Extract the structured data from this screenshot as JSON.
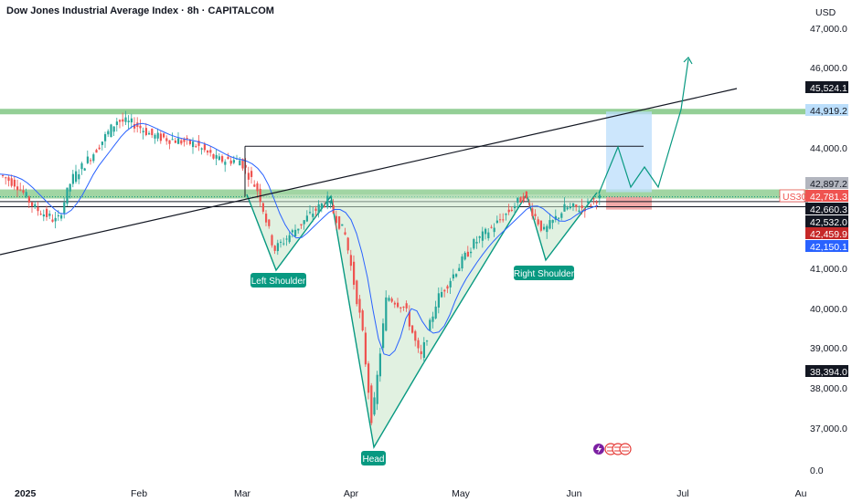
{
  "header": {
    "title": "Dow Jones Industrial Average Index · 8h · CAPITALCOM",
    "currency": "USD"
  },
  "chart_data": {
    "type": "candlestick",
    "symbol": "US30",
    "y_ticks": [
      "47,000.0",
      "46,000.0",
      "44,000.0",
      "41,000.0",
      "40,000.0",
      "39,000.0",
      "38,000.0",
      "37,000.0",
      "0.0"
    ],
    "x_ticks": [
      "2025",
      "Feb",
      "Mar",
      "Apr",
      "May",
      "Jun",
      "Jul",
      "Au"
    ],
    "price_labels": [
      {
        "text": "45,524.1",
        "value": 45524.1,
        "style": "dark"
      },
      {
        "text": "44,919.2",
        "value": 44919.2,
        "style": "blue-light"
      },
      {
        "text": "42,897.2",
        "value": 42897.2,
        "style": "grey"
      },
      {
        "text": "42,781.3",
        "value": 42781.3,
        "style": "red"
      },
      {
        "text": "42,660.3",
        "value": 42660.3,
        "style": "dark"
      },
      {
        "text": "42,532.0",
        "value": 42532.0,
        "style": "dark"
      },
      {
        "text": "42,459.9",
        "value": 42459.9,
        "style": "darkred"
      },
      {
        "text": "42,150.1",
        "value": 42150.1,
        "style": "blue"
      },
      {
        "text": "38,394.0",
        "value": 38394.0,
        "style": "dark"
      }
    ],
    "annotations": {
      "left_shoulder": "Left Shoulder",
      "right_shoulder": "Right Shoulder",
      "head": "Head"
    },
    "levels": {
      "resistance_top": 44919.2,
      "neckline_zone_top": 42897.2,
      "neckline": 42781.3,
      "support_a": 42660.3,
      "support_b": 42532.0,
      "breakout_box_top": 44919.2,
      "breakout_box_bottom": 42897.2,
      "stop_box_top": 42781.3,
      "stop_box_bottom": 42459.9,
      "flat_line": 44050
    },
    "colors": {
      "up": "#26a69a",
      "down": "#ef5350",
      "ma": "#2962ff",
      "zone": "#81c784",
      "pattern_fill": "#c8e6c9",
      "pattern_line": "#089981"
    }
  }
}
